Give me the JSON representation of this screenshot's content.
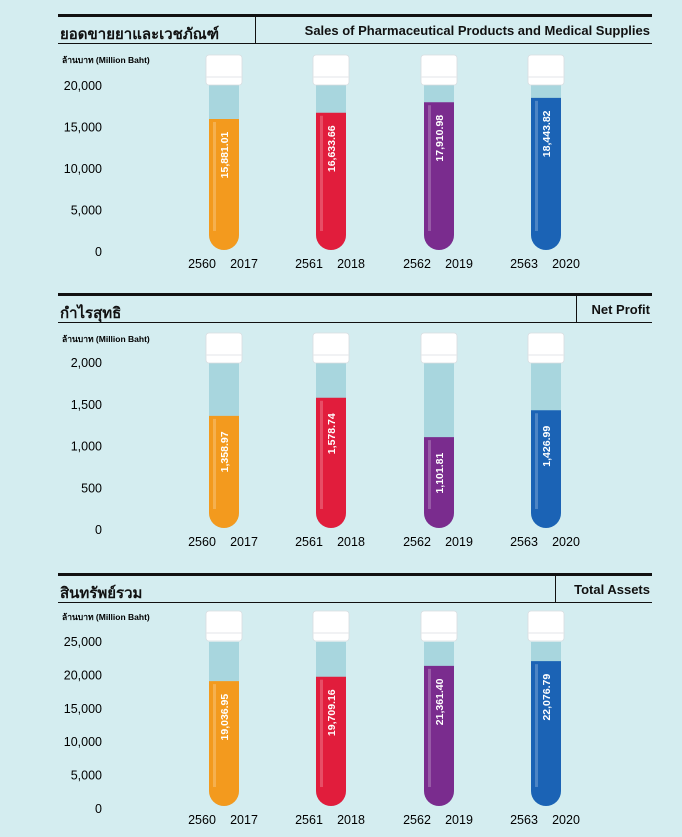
{
  "chart_data": [
    {
      "type": "bar",
      "title_th": "ยอดขายยาและเวชภัณฑ์",
      "title": "Sales of Pharmaceutical Products and Medical Supplies",
      "ylabel": "ล้านบาท (Million Baht)",
      "ylim": [
        0,
        20000
      ],
      "yticks": [
        "20,000",
        "15,000",
        "10,000",
        "5,000",
        "0"
      ],
      "categories": [
        {
          "th": "2560",
          "en": "2017"
        },
        {
          "th": "2561",
          "en": "2018"
        },
        {
          "th": "2562",
          "en": "2019"
        },
        {
          "th": "2563",
          "en": "2020"
        }
      ],
      "values": [
        15881.01,
        16633.66,
        17910.98,
        18443.82
      ],
      "labels": [
        "15,881.01",
        "16,633.66",
        "17,910.98",
        "18,443.82"
      ]
    },
    {
      "type": "bar",
      "title_th": "กำไรสุทธิ",
      "title": "Net Profit",
      "ylabel": "ล้านบาท (Million Baht)",
      "ylim": [
        0,
        2000
      ],
      "yticks": [
        "2,000",
        "1,500",
        "1,000",
        "500",
        "0"
      ],
      "categories": [
        {
          "th": "2560",
          "en": "2017"
        },
        {
          "th": "2561",
          "en": "2018"
        },
        {
          "th": "2562",
          "en": "2019"
        },
        {
          "th": "2563",
          "en": "2020"
        }
      ],
      "values": [
        1358.97,
        1578.74,
        1101.81,
        1426.99
      ],
      "labels": [
        "1,358.97",
        "1,578.74",
        "1,101.81",
        "1,426.99"
      ]
    },
    {
      "type": "bar",
      "title_th": "สินทรัพย์รวม",
      "title": "Total Assets",
      "ylabel": "ล้านบาท (Million Baht)",
      "ylim": [
        0,
        25000
      ],
      "yticks": [
        "25,000",
        "20,000",
        "15,000",
        "10,000",
        "5,000",
        "0"
      ],
      "categories": [
        {
          "th": "2560",
          "en": "2017"
        },
        {
          "th": "2561",
          "en": "2018"
        },
        {
          "th": "2562",
          "en": "2019"
        },
        {
          "th": "2563",
          "en": "2020"
        }
      ],
      "values": [
        19036.95,
        19709.16,
        21361.4,
        22076.79
      ],
      "labels": [
        "19,036.95",
        "19,709.16",
        "21,361.40",
        "22,076.79"
      ]
    }
  ],
  "colors": {
    "tube_glass": "#a8d6de",
    "cap": "#ffffff",
    "series": [
      "#f39a1e",
      "#e11d3c",
      "#7a2c8e",
      "#1b63b5"
    ]
  }
}
